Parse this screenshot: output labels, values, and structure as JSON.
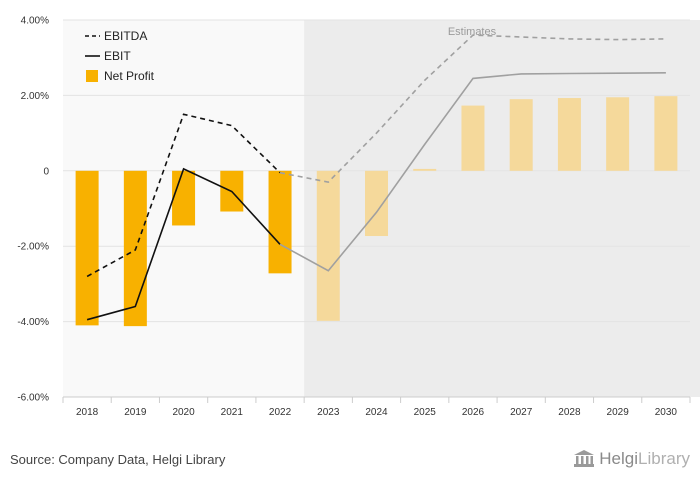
{
  "chart_data": {
    "type": "bar",
    "categories": [
      "2018",
      "2019",
      "2020",
      "2021",
      "2022",
      "2023",
      "2024",
      "2025",
      "2026",
      "2027",
      "2028",
      "2029",
      "2030"
    ],
    "ylim": [
      -6,
      4
    ],
    "yticks": [
      4,
      2,
      0,
      -2,
      -4,
      -6
    ],
    "ytick_labels": [
      "4.00%",
      "2.00%",
      "0",
      "-2.00%",
      "-4.00%",
      "-6.00%"
    ],
    "estimates_start_index": 5,
    "estimates_label": "Estimates",
    "series": [
      {
        "name": "EBITDA",
        "kind": "line",
        "style": "dashed",
        "values": [
          -2.8,
          -2.1,
          1.5,
          1.2,
          -0.05,
          -0.3,
          1.0,
          2.4,
          3.6,
          3.55,
          3.5,
          3.48,
          3.5
        ]
      },
      {
        "name": "EBIT",
        "kind": "line",
        "style": "solid",
        "values": [
          -3.95,
          -3.6,
          0.05,
          -0.55,
          -1.95,
          -2.65,
          -1.1,
          0.7,
          2.45,
          2.57,
          2.58,
          2.59,
          2.6
        ]
      },
      {
        "name": "Net Profit",
        "kind": "bar",
        "values": [
          -4.1,
          -4.12,
          -1.45,
          -1.08,
          -2.72,
          -3.98,
          -1.73,
          0.05,
          1.73,
          1.9,
          1.93,
          1.95,
          1.98
        ]
      }
    ],
    "legend_position": "top-left",
    "grid": true
  },
  "colors": {
    "bar_actual": "#f8b100",
    "bar_estimate": "#f5d99b",
    "line_actual": "#111111",
    "line_estimate": "#a0a0a0",
    "estimate_bg": "#ececec",
    "plot_bg": "#f9f9f9",
    "grid": "#e3e3e3"
  },
  "footer": {
    "source": "Source: Company Data, Helgi Library",
    "brand": "Helgi",
    "brand_suffix": "Library"
  }
}
